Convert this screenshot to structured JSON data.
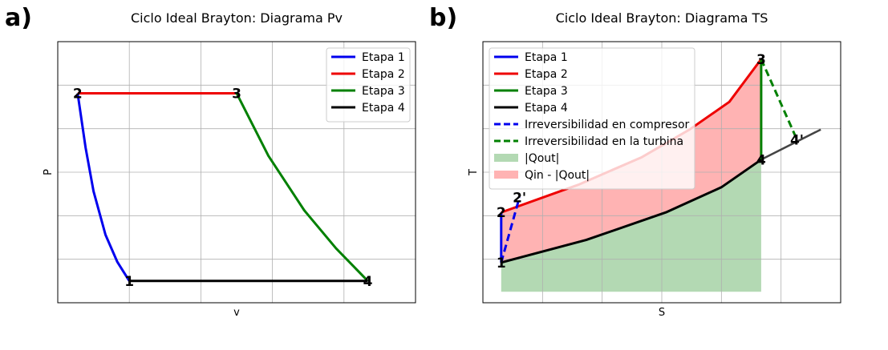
{
  "chart_data": [
    {
      "panel_label": "a)",
      "type": "line",
      "title": "Ciclo Ideal Brayton: Diagrama Pv",
      "xlabel": "v",
      "ylabel": "P",
      "grid": true,
      "ticks_shown": false,
      "xlim": [
        0.1,
        4.6
      ],
      "ylim": [
        0.6,
        5.4
      ],
      "legend_position": "top-right",
      "series": [
        {
          "name": "Etapa 1",
          "color": "#0000ee",
          "style": "solid",
          "x": [
            1.0,
            0.85,
            0.7,
            0.55,
            0.45,
            0.35
          ],
          "y": [
            1.0,
            1.35,
            1.85,
            2.65,
            3.45,
            4.45
          ]
        },
        {
          "name": "Etapa 2",
          "color": "#ee0000",
          "style": "solid",
          "x": [
            0.35,
            2.35
          ],
          "y": [
            4.45,
            4.45
          ]
        },
        {
          "name": "Etapa 3",
          "color": "#008000",
          "style": "solid",
          "x": [
            2.35,
            2.75,
            3.2,
            3.6,
            4.0
          ],
          "y": [
            4.45,
            3.3,
            2.3,
            1.6,
            1.0
          ]
        },
        {
          "name": "Etapa 4",
          "color": "#000000",
          "style": "solid",
          "x": [
            4.0,
            1.0
          ],
          "y": [
            1.0,
            1.0
          ]
        }
      ],
      "point_labels": [
        {
          "text": "1",
          "x": 1.0,
          "y": 1.0
        },
        {
          "text": "2",
          "x": 0.35,
          "y": 4.45
        },
        {
          "text": "3",
          "x": 2.35,
          "y": 4.45
        },
        {
          "text": "4",
          "x": 4.0,
          "y": 1.0
        }
      ]
    },
    {
      "panel_label": "b)",
      "type": "line",
      "title": "Ciclo Ideal Brayton: Diagrama TS",
      "xlabel": "S",
      "ylabel": "T",
      "grid": true,
      "ticks_shown": false,
      "xlim": [
        0.0,
        4.5
      ],
      "ylim": [
        0.0,
        5.2
      ],
      "legend_position": "top-left",
      "series": [
        {
          "name": "Etapa 1",
          "color": "#0000ee",
          "style": "solid",
          "x": [
            0.23,
            0.23
          ],
          "y": [
            0.8,
            1.8
          ]
        },
        {
          "name": "Etapa 2",
          "color": "#ee0000",
          "style": "solid",
          "x": [
            0.23,
            1.2,
            2.0,
            2.6,
            3.1,
            3.5
          ],
          "y": [
            1.8,
            2.35,
            2.9,
            3.45,
            4.0,
            4.85
          ]
        },
        {
          "name": "Etapa 3",
          "color": "#008000",
          "style": "solid",
          "x": [
            3.5,
            3.5
          ],
          "y": [
            4.85,
            2.85
          ]
        },
        {
          "name": "Etapa 4",
          "color": "#000000",
          "style": "solid",
          "x": [
            0.23,
            1.3,
            2.3,
            3.0,
            3.5
          ],
          "y": [
            0.8,
            1.25,
            1.8,
            2.3,
            2.85
          ]
        },
        {
          "name": "Irreversibilidad en compresor",
          "color": "#0000ee",
          "style": "dashed",
          "x": [
            0.23,
            0.46
          ],
          "y": [
            0.8,
            2.1
          ]
        },
        {
          "name": "Irreversibilidad en la turbina",
          "color": "#008000",
          "style": "dashed",
          "x": [
            3.5,
            3.95
          ],
          "y": [
            4.85,
            3.25
          ]
        }
      ],
      "extra_lines": [
        {
          "color": "#444444",
          "style": "solid",
          "x": [
            3.5,
            4.25
          ],
          "y": [
            2.85,
            3.45
          ]
        }
      ],
      "fills": [
        {
          "name": "|Qout|",
          "color": "#b3d9b3",
          "upper_x": [
            0.23,
            1.3,
            2.3,
            3.0,
            3.5
          ],
          "upper_y": [
            0.8,
            1.25,
            1.8,
            2.3,
            2.85
          ],
          "base": 0.22
        },
        {
          "name": "Qin - |Qout|",
          "color": "#ffb3b3",
          "polygon_x": [
            0.23,
            1.2,
            2.0,
            2.6,
            3.1,
            3.5,
            3.5,
            3.0,
            2.3,
            1.3,
            0.23
          ],
          "polygon_y": [
            1.8,
            2.35,
            2.9,
            3.45,
            4.0,
            4.85,
            2.85,
            2.3,
            1.8,
            1.25,
            0.8
          ]
        }
      ],
      "point_labels": [
        {
          "text": "1",
          "x": 0.23,
          "y": 0.8
        },
        {
          "text": "2",
          "x": 0.23,
          "y": 1.8
        },
        {
          "text": "2'",
          "x": 0.46,
          "y": 2.1
        },
        {
          "text": "3",
          "x": 3.5,
          "y": 4.85
        },
        {
          "text": "4",
          "x": 3.5,
          "y": 2.85
        },
        {
          "text": "4'",
          "x": 3.95,
          "y": 3.25
        }
      ]
    }
  ]
}
